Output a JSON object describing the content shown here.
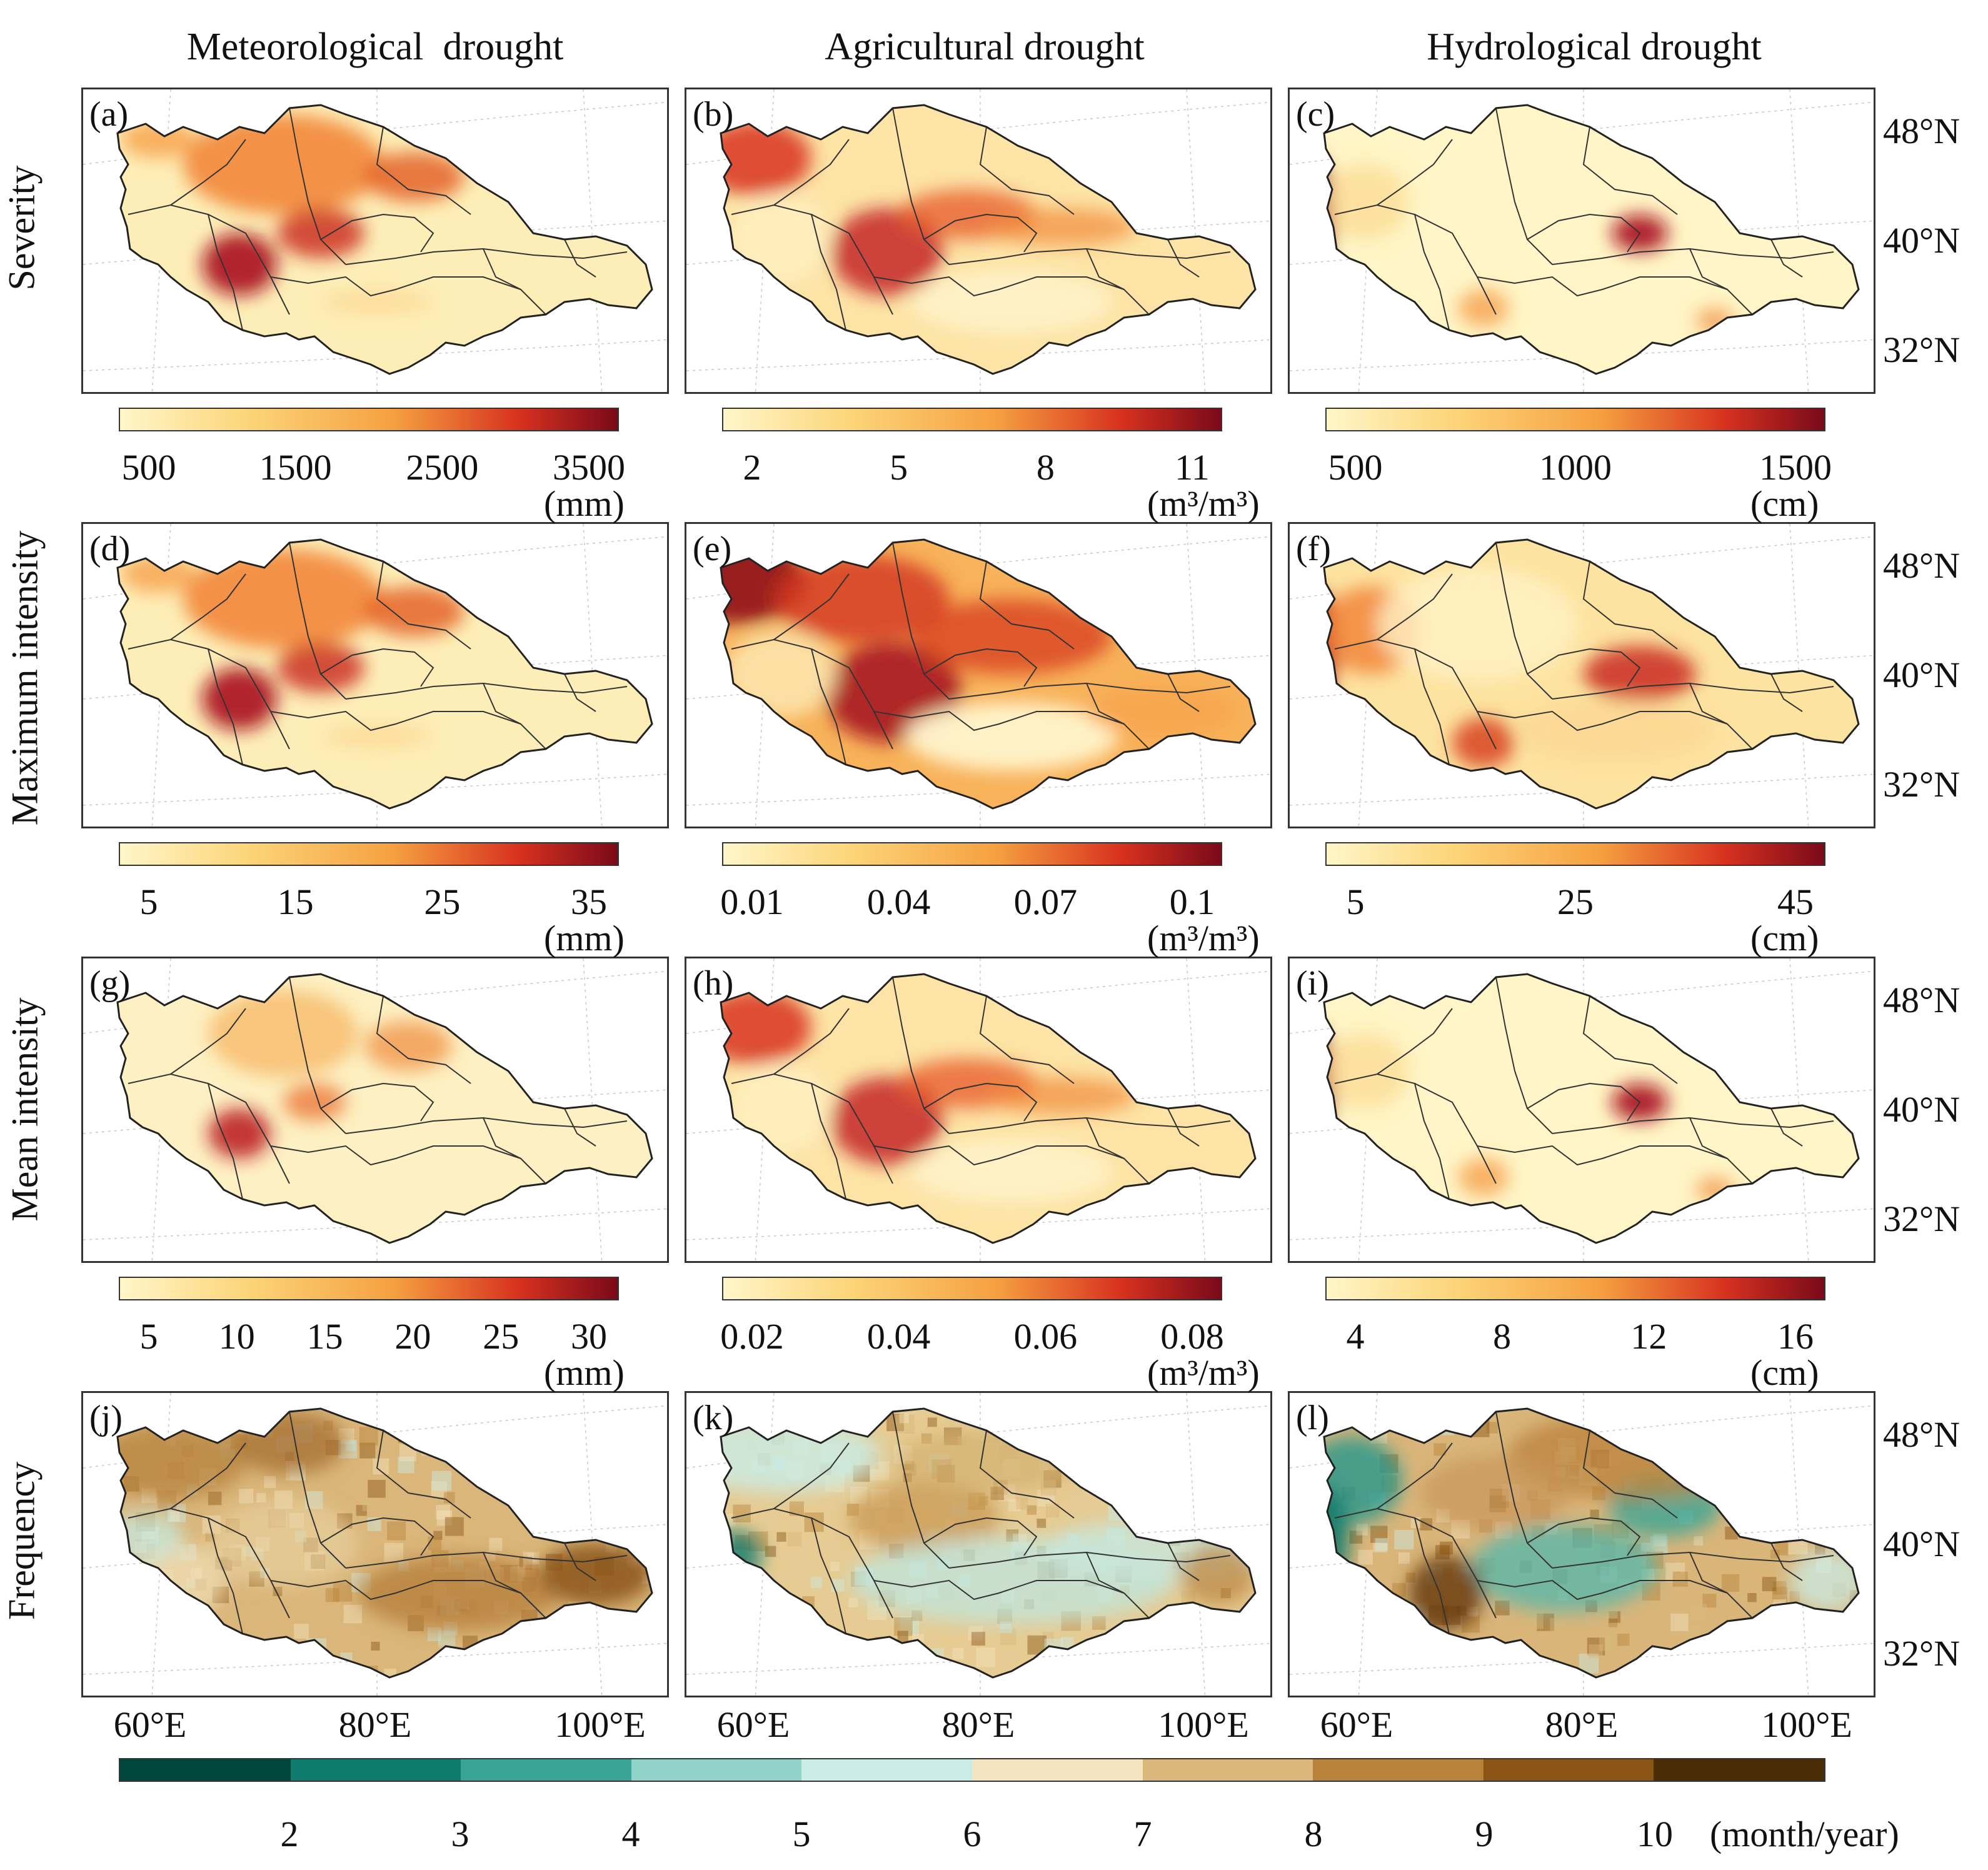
{
  "column_titles": [
    "Meteorological  drought",
    "Agricultural drought",
    "Hydrological drought"
  ],
  "row_titles": [
    "Severity",
    "Maximum intensity",
    "Mean intensity",
    "Frequency"
  ],
  "panels": [
    {
      "label": "(a)",
      "row": 0,
      "col": 0,
      "scheme": "met"
    },
    {
      "label": "(b)",
      "row": 0,
      "col": 1,
      "scheme": "agr"
    },
    {
      "label": "(c)",
      "row": 0,
      "col": 2,
      "scheme": "hyd"
    },
    {
      "label": "(d)",
      "row": 1,
      "col": 0,
      "scheme": "met"
    },
    {
      "label": "(e)",
      "row": 1,
      "col": 1,
      "scheme": "agr-high"
    },
    {
      "label": "(f)",
      "row": 1,
      "col": 2,
      "scheme": "hyd-high"
    },
    {
      "label": "(g)",
      "row": 2,
      "col": 0,
      "scheme": "met-low"
    },
    {
      "label": "(h)",
      "row": 2,
      "col": 1,
      "scheme": "agr"
    },
    {
      "label": "(i)",
      "row": 2,
      "col": 2,
      "scheme": "hyd"
    },
    {
      "label": "(j)",
      "row": 3,
      "col": 0,
      "scheme": "freq-met"
    },
    {
      "label": "(k)",
      "row": 3,
      "col": 1,
      "scheme": "freq-agr"
    },
    {
      "label": "(l)",
      "row": 3,
      "col": 2,
      "scheme": "freq-hyd"
    }
  ],
  "latitude_labels": [
    "48°N",
    "40°N",
    "32°N"
  ],
  "longitude_labels": [
    "60°E",
    "80°E",
    "100°E"
  ],
  "colorbars": [
    {
      "row": 0,
      "col": 0,
      "ticks": [
        "500",
        "1500",
        "2500",
        "3500"
      ],
      "unit": "(mm)"
    },
    {
      "row": 0,
      "col": 1,
      "ticks": [
        "2",
        "5",
        "8",
        "11"
      ],
      "unit": "(m³/m³)"
    },
    {
      "row": 0,
      "col": 2,
      "ticks": [
        "500",
        "1000",
        "1500"
      ],
      "unit": "(cm)"
    },
    {
      "row": 1,
      "col": 0,
      "ticks": [
        "5",
        "15",
        "25",
        "35"
      ],
      "unit": "(mm)"
    },
    {
      "row": 1,
      "col": 1,
      "ticks": [
        "0.01",
        "0.04",
        "0.07",
        "0.1"
      ],
      "unit": "(m³/m³)"
    },
    {
      "row": 1,
      "col": 2,
      "ticks": [
        "5",
        "25",
        "45"
      ],
      "unit": "(cm)"
    },
    {
      "row": 2,
      "col": 0,
      "ticks": [
        "5",
        "10",
        "15",
        "20",
        "25",
        "30"
      ],
      "unit": "(mm)"
    },
    {
      "row": 2,
      "col": 1,
      "ticks": [
        "0.02",
        "0.04",
        "0.06",
        "0.08"
      ],
      "unit": "(m³/m³)"
    },
    {
      "row": 2,
      "col": 2,
      "ticks": [
        "4",
        "8",
        "12",
        "16"
      ],
      "unit": "(cm)"
    }
  ],
  "frequency_colorbar": {
    "ticks": [
      "2",
      "3",
      "4",
      "5",
      "6",
      "7",
      "8",
      "9",
      "10"
    ],
    "unit": "(month/year)",
    "colors": [
      "#00463b",
      "#0f7b6e",
      "#3aa597",
      "#8fd3c9",
      "#c9ece6",
      "#f4e4bf",
      "#d9b77a",
      "#b9823a",
      "#8a5414",
      "#4a2c06"
    ]
  },
  "colors": {
    "seq_light": "#fff6c9",
    "seq_mid": "#f5a040",
    "seq_dark": "#7a0a1a"
  }
}
